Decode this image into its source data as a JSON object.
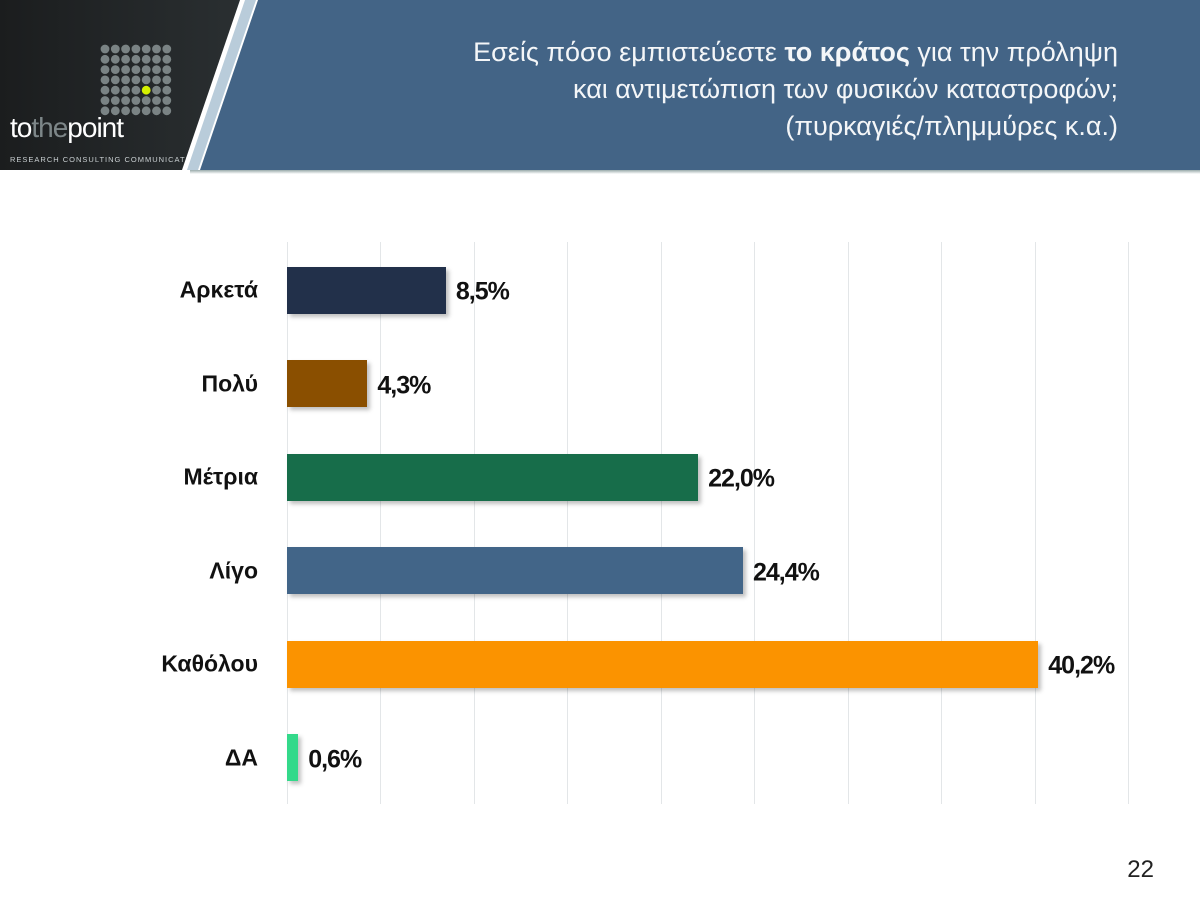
{
  "header": {
    "title_pre": "Εσείς πόσο εμπιστεύεστε ",
    "title_bold": "το κράτος",
    "title_post": " για την πρόληψη",
    "title_line2": "και αντιμετώπιση των φυσικών καταστροφών;",
    "title_line3": "(πυρκαγιές/πλημμύρες κ.α.)",
    "logo": {
      "brand_to": "to",
      "brand_the": "the",
      "brand_point": "point",
      "tagline": "RESEARCH CONSULTING COMMUNICATION"
    }
  },
  "chart_data": {
    "type": "bar",
    "orientation": "horizontal",
    "categories": [
      "Αρκετά",
      "Πολύ",
      "Μέτρια",
      "Λίγο",
      "Καθόλου",
      "ΔΑ"
    ],
    "values": [
      8.5,
      4.3,
      22.0,
      24.4,
      40.2,
      0.6
    ],
    "value_labels": [
      "8,5%",
      "4,3%",
      "22,0%",
      "24,4%",
      "40,2%",
      "0,6%"
    ],
    "colors": [
      "#22304a",
      "#8a4f00",
      "#176d4a",
      "#426588",
      "#fb9300",
      "#33d98a"
    ],
    "xlim": [
      0,
      45
    ],
    "grid": true,
    "grid_step": 5,
    "legend": "none"
  },
  "page_number": "22"
}
